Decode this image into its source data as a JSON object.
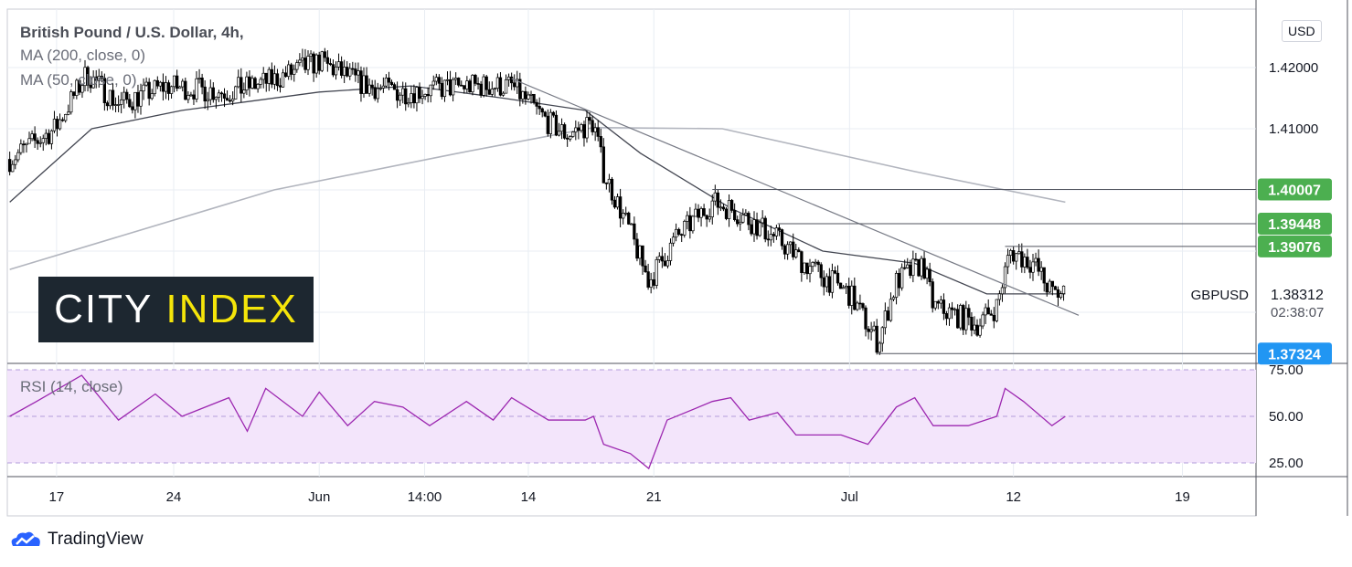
{
  "header": {
    "title": "British Pound / U.S. Dollar, 4h,",
    "ma200": "MA (200, close, 0)",
    "ma50": "MA (50, close, 0)",
    "rsi": "RSI (14, close)",
    "currency": "USD"
  },
  "logo": {
    "part1": "CITY",
    "part2": "INDEX"
  },
  "footer": {
    "brand": "TradingView"
  },
  "chart_data": {
    "type": "candlestick",
    "symbol": "GBPUSD",
    "last_price": "1.38312",
    "countdown": "02:38:07",
    "price_ticks": [
      "1.42000",
      "1.41000"
    ],
    "price_range": [
      1.3695,
      1.4245
    ],
    "x_ticks": [
      {
        "label": "17",
        "day": 3
      },
      {
        "label": "24",
        "day": 10
      },
      {
        "label": "Jun",
        "day": 18.7
      },
      {
        "label": "14:00",
        "day": 25
      },
      {
        "label": "14",
        "day": 31.2
      },
      {
        "label": "21",
        "day": 38.7
      },
      {
        "label": "Jul",
        "day": 50.4
      },
      {
        "label": "12",
        "day": 60.2
      },
      {
        "label": "19",
        "day": 70.3
      }
    ],
    "close_path": [
      [
        0.2,
        1.405
      ],
      [
        2.9,
        1.41
      ],
      [
        4.8,
        1.419
      ],
      [
        6.7,
        1.414
      ],
      [
        9.5,
        1.417
      ],
      [
        13.3,
        1.416
      ],
      [
        16,
        1.418
      ],
      [
        18.7,
        1.421
      ],
      [
        21.5,
        1.417
      ],
      [
        23.7,
        1.416
      ],
      [
        27.5,
        1.417
      ],
      [
        30.2,
        1.417
      ],
      [
        32.4,
        1.411
      ],
      [
        33.5,
        1.409
      ],
      [
        35.1,
        1.411
      ],
      [
        35.7,
        1.403
      ],
      [
        37.3,
        1.393
      ],
      [
        38.4,
        1.385
      ],
      [
        40,
        1.392
      ],
      [
        42.2,
        1.398
      ],
      [
        43.3,
        1.397
      ],
      [
        46.1,
        1.392
      ],
      [
        47.7,
        1.388
      ],
      [
        50.4,
        1.383
      ],
      [
        52.1,
        1.375
      ],
      [
        53.2,
        1.385
      ],
      [
        54.8,
        1.388
      ],
      [
        55.4,
        1.381
      ],
      [
        58.1,
        1.378
      ],
      [
        59.2,
        1.381
      ],
      [
        60,
        1.39
      ],
      [
        61.4,
        1.388
      ],
      [
        62.5,
        1.383
      ],
      [
        63.3,
        1.3831
      ]
    ],
    "ma200": [
      [
        0.2,
        1.387
      ],
      [
        16,
        1.4
      ],
      [
        27,
        1.406
      ],
      [
        35.1,
        1.4102
      ],
      [
        42.8,
        1.41
      ],
      [
        54.3,
        1.403
      ],
      [
        63.3,
        1.398
      ]
    ],
    "ma50": [
      [
        0.2,
        1.398
      ],
      [
        5.1,
        1.41
      ],
      [
        10.5,
        1.413
      ],
      [
        18.7,
        1.416
      ],
      [
        24.2,
        1.417
      ],
      [
        29.7,
        1.415
      ],
      [
        34.6,
        1.413
      ],
      [
        37.9,
        1.406
      ],
      [
        43.3,
        1.397
      ],
      [
        48.8,
        1.39
      ],
      [
        54.3,
        1.388
      ],
      [
        58.6,
        1.383
      ],
      [
        63.3,
        1.383
      ]
    ],
    "trendline": [
      [
        30.2,
        1.4182
      ],
      [
        64.1,
        1.3795
      ]
    ],
    "levels": [
      {
        "value": 1.40007,
        "label": "1.40007",
        "from_day": 42.2,
        "color": "#4caf50"
      },
      {
        "value": 1.39448,
        "label": "1.39448",
        "from_day": 46.1,
        "color": "#4caf50"
      },
      {
        "value": 1.39076,
        "label": "1.39076",
        "from_day": 59.7,
        "color": "#4caf50"
      },
      {
        "value": 1.37324,
        "label": "1.37324",
        "from_day": 52.1,
        "color": "#2196f3"
      }
    ],
    "rsi": {
      "ticks": [
        "75.00",
        "50.00",
        "25.00"
      ],
      "range": [
        25,
        75
      ],
      "values": [
        [
          0.2,
          50
        ],
        [
          1.8,
          58
        ],
        [
          4.5,
          72
        ],
        [
          6.7,
          48
        ],
        [
          8.9,
          62
        ],
        [
          10.5,
          50
        ],
        [
          13.3,
          60
        ],
        [
          14.4,
          42
        ],
        [
          15.5,
          65
        ],
        [
          17.7,
          50
        ],
        [
          18.7,
          63
        ],
        [
          20.4,
          45
        ],
        [
          22,
          58
        ],
        [
          23.7,
          55
        ],
        [
          25.3,
          45
        ],
        [
          27.5,
          58
        ],
        [
          29.1,
          48
        ],
        [
          30.2,
          60
        ],
        [
          32.4,
          48
        ],
        [
          34.6,
          48
        ],
        [
          35.1,
          50
        ],
        [
          35.7,
          35
        ],
        [
          37.3,
          30
        ],
        [
          38.4,
          22
        ],
        [
          39.5,
          48
        ],
        [
          42.2,
          58
        ],
        [
          43.3,
          60
        ],
        [
          44.4,
          48
        ],
        [
          46.1,
          52
        ],
        [
          47.2,
          40
        ],
        [
          49.9,
          40
        ],
        [
          51.5,
          35
        ],
        [
          53.2,
          55
        ],
        [
          54.3,
          60
        ],
        [
          55.4,
          45
        ],
        [
          57.5,
          45
        ],
        [
          59.2,
          50
        ],
        [
          59.7,
          65
        ],
        [
          60.8,
          58
        ],
        [
          62.5,
          45
        ],
        [
          63.3,
          50
        ]
      ]
    }
  }
}
